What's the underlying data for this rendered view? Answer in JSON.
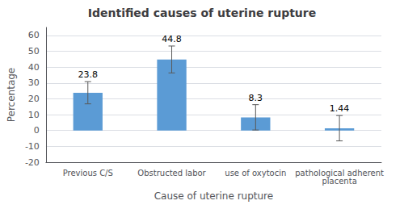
{
  "chart_data": {
    "type": "bar",
    "title": "Identified causes of uterine rupture",
    "xlabel": "Cause of uterine rupture",
    "ylabel": "Percentage",
    "categories": [
      "Previous C/S",
      "Obstructed labor",
      "use of oxytocin",
      "pathological adherent\nplacenta"
    ],
    "values": [
      23.8,
      44.8,
      8.3,
      1.44
    ],
    "errors": [
      7.0,
      8.5,
      8.0,
      8.0
    ],
    "color": "#5B9BD5",
    "ylim": [
      -20,
      65
    ],
    "yticks": [
      -20,
      -10,
      0,
      10,
      20,
      30,
      40,
      50,
      60
    ],
    "grid": true,
    "data_labels": true
  }
}
